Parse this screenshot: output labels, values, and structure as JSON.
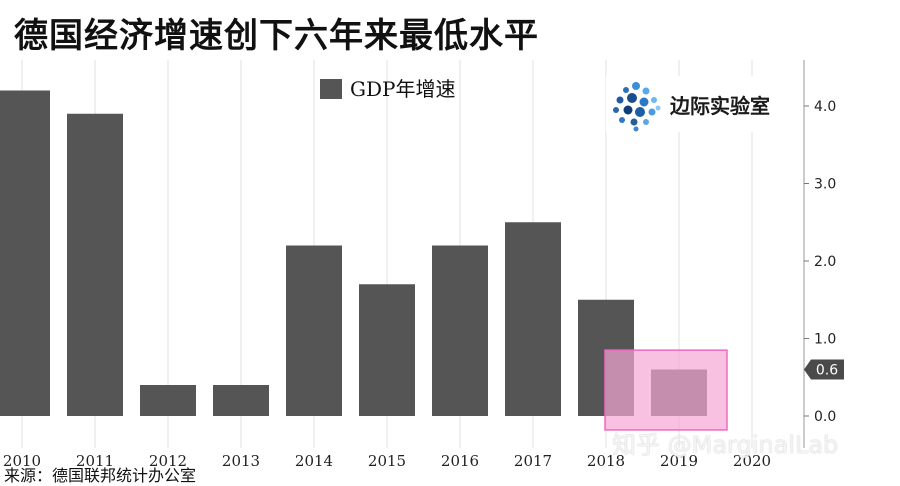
{
  "title": "德国经济增速创下六年来最低水平",
  "source": "来源：德国联邦统计办公室",
  "watermark": "知乎 @MarginalLab",
  "logo": {
    "text": "边际实验室",
    "icon": "dot-cluster-logo-icon"
  },
  "colors": {
    "bar": "#555555",
    "highlight_fill": "#f7a6d4",
    "highlight_stroke": "#f06ac0",
    "callout": "#4a4a4a"
  },
  "chart_data": {
    "type": "bar",
    "categories": [
      "2010",
      "2011",
      "2012",
      "2013",
      "2014",
      "2015",
      "2016",
      "2017",
      "2018",
      "2019",
      "2020"
    ],
    "values": [
      4.2,
      3.9,
      0.4,
      0.4,
      2.2,
      1.7,
      2.2,
      2.5,
      1.5,
      0.6,
      null
    ],
    "legend": "GDP年增速",
    "legend_position": "top-center",
    "ylim": [
      -0.2,
      4.6
    ],
    "yticks": [
      "0.0",
      "1.0",
      "2.0",
      "3.0",
      "4.0"
    ],
    "ytick_values": [
      0,
      1,
      2,
      3,
      4
    ],
    "y_axis_side": "right",
    "grid": "vertical",
    "callout": {
      "category": "2019",
      "label": "0.6",
      "value": 0.6
    },
    "highlight": {
      "categories": [
        "2018",
        "2019"
      ],
      "y_range": [
        -0.18,
        0.85
      ]
    }
  }
}
